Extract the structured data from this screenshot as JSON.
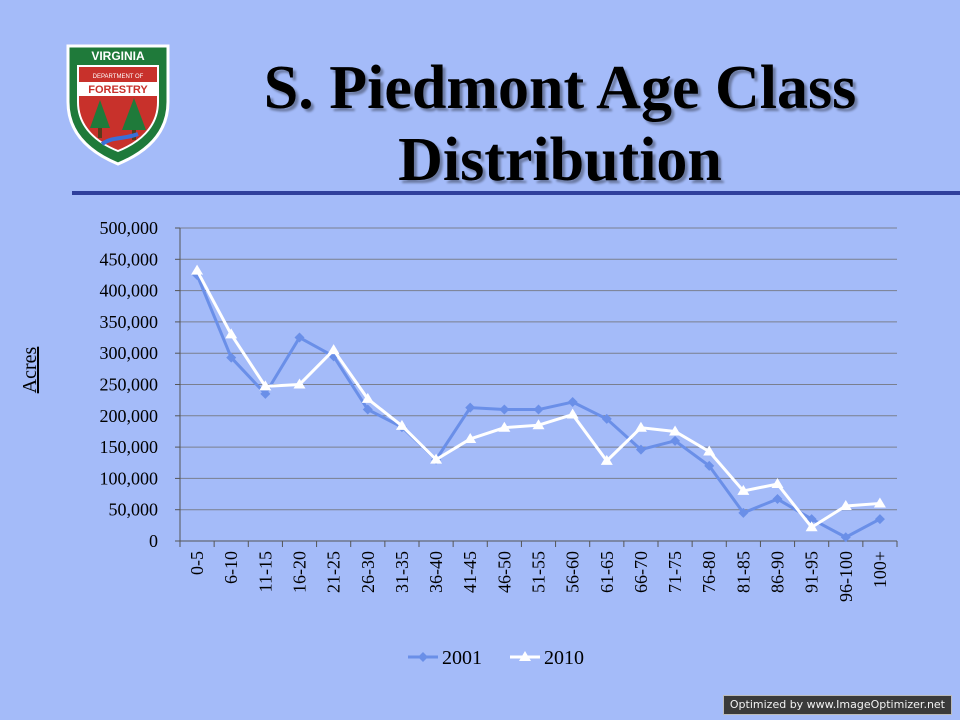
{
  "slide": {
    "title_line1": "S. Piedmont Age Class",
    "title_line2": "Distribution",
    "logo": {
      "top_text": "VIRGINIA",
      "middle_text": "DEPARTMENT OF",
      "banner_text": "FORESTRY",
      "colors": {
        "green": "#1f7a3a",
        "red": "#c8312b",
        "white": "#ffffff"
      }
    },
    "watermark": "Optimized by www.ImageOptimizer.net",
    "rule_color": "#2f3f9c"
  },
  "chart_data": {
    "type": "line",
    "title": "",
    "xlabel": "",
    "ylabel": "Acres",
    "ylim": [
      0,
      500000
    ],
    "yticks": [
      0,
      50000,
      100000,
      150000,
      200000,
      250000,
      300000,
      350000,
      400000,
      450000,
      500000
    ],
    "ytick_labels": [
      "0",
      "50,000",
      "100,000",
      "150,000",
      "200,000",
      "250,000",
      "300,000",
      "350,000",
      "400,000",
      "450,000",
      "500,000"
    ],
    "grid": "horizontal",
    "legend_position": "bottom",
    "categories": [
      "0-5",
      "6-10",
      "11-15",
      "16-20",
      "21-25",
      "26-30",
      "31-35",
      "36-40",
      "41-45",
      "46-50",
      "51-55",
      "56-60",
      "61-65",
      "66-70",
      "71-75",
      "76-80",
      "81-85",
      "86-90",
      "91-95",
      "96-100",
      "100+"
    ],
    "series": [
      {
        "name": "2001",
        "color": "#6a8fe8",
        "marker": "diamond",
        "values": [
          425000,
          293000,
          235000,
          325000,
          295000,
          210000,
          182000,
          130000,
          213000,
          210000,
          210000,
          222000,
          195000,
          146000,
          160000,
          120000,
          45000,
          67000,
          35000,
          6000,
          35000
        ]
      },
      {
        "name": "2010",
        "color": "#ffffff",
        "marker": "triangle",
        "values": [
          432000,
          330000,
          247000,
          250000,
          305000,
          227000,
          184000,
          130000,
          163000,
          181000,
          185000,
          202000,
          128000,
          181000,
          175000,
          143000,
          80000,
          91000,
          22000,
          56000,
          60000
        ]
      }
    ]
  }
}
